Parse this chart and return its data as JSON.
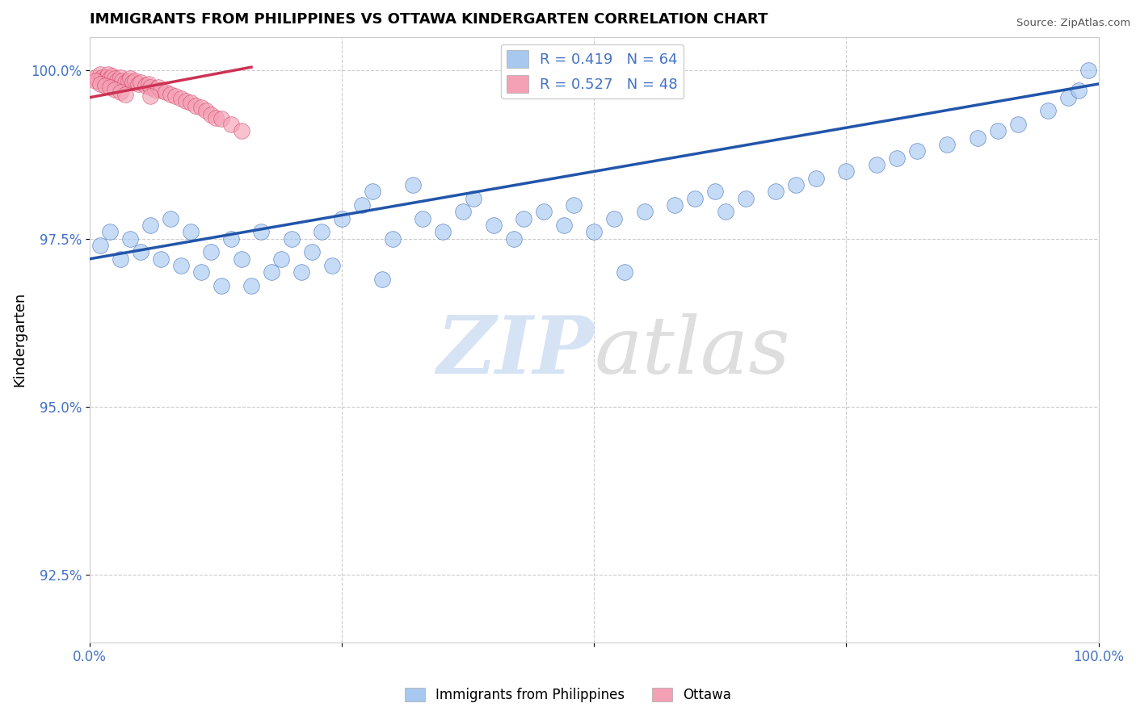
{
  "title": "IMMIGRANTS FROM PHILIPPINES VS OTTAWA KINDERGARTEN CORRELATION CHART",
  "source": "Source: ZipAtlas.com",
  "ylabel": "Kindergarten",
  "xlim": [
    0.0,
    1.0
  ],
  "ylim": [
    0.915,
    1.005
  ],
  "x_ticks": [
    0.0,
    0.25,
    0.5,
    0.75,
    1.0
  ],
  "x_tick_labels": [
    "0.0%",
    "",
    "",
    "",
    "100.0%"
  ],
  "y_ticks": [
    0.925,
    0.95,
    0.975,
    1.0
  ],
  "y_tick_labels": [
    "92.5%",
    "95.0%",
    "97.5%",
    "100.0%"
  ],
  "blue_R": 0.419,
  "blue_N": 64,
  "pink_R": 0.527,
  "pink_N": 48,
  "blue_color": "#a8c8f0",
  "pink_color": "#f4a0b5",
  "blue_line_color": "#2255aa",
  "pink_line_color": "#cc3355",
  "legend_blue_label": "R = 0.419   N = 64",
  "legend_pink_label": "R = 0.527   N = 48",
  "bottom_legend_blue": "Immigrants from Philippines",
  "bottom_legend_pink": "Ottawa",
  "blue_scatter_x": [
    0.01,
    0.02,
    0.03,
    0.04,
    0.05,
    0.06,
    0.07,
    0.08,
    0.09,
    0.1,
    0.11,
    0.12,
    0.13,
    0.14,
    0.15,
    0.16,
    0.17,
    0.18,
    0.19,
    0.2,
    0.21,
    0.22,
    0.23,
    0.25,
    0.27,
    0.28,
    0.3,
    0.32,
    0.33,
    0.35,
    0.37,
    0.38,
    0.4,
    0.42,
    0.43,
    0.45,
    0.47,
    0.48,
    0.5,
    0.52,
    0.55,
    0.58,
    0.6,
    0.62,
    0.63,
    0.65,
    0.68,
    0.7,
    0.72,
    0.75,
    0.78,
    0.8,
    0.82,
    0.85,
    0.88,
    0.9,
    0.92,
    0.95,
    0.97,
    0.98,
    0.24,
    0.29,
    0.53,
    0.99
  ],
  "blue_scatter_y": [
    0.974,
    0.976,
    0.972,
    0.975,
    0.973,
    0.977,
    0.972,
    0.978,
    0.971,
    0.976,
    0.97,
    0.973,
    0.968,
    0.975,
    0.972,
    0.968,
    0.976,
    0.97,
    0.972,
    0.975,
    0.97,
    0.973,
    0.976,
    0.978,
    0.98,
    0.982,
    0.975,
    0.983,
    0.978,
    0.976,
    0.979,
    0.981,
    0.977,
    0.975,
    0.978,
    0.979,
    0.977,
    0.98,
    0.976,
    0.978,
    0.979,
    0.98,
    0.981,
    0.982,
    0.979,
    0.981,
    0.982,
    0.983,
    0.984,
    0.985,
    0.986,
    0.987,
    0.988,
    0.989,
    0.99,
    0.991,
    0.992,
    0.994,
    0.996,
    0.997,
    0.971,
    0.969,
    0.97,
    1.0
  ],
  "pink_scatter_x": [
    0.005,
    0.008,
    0.01,
    0.012,
    0.014,
    0.016,
    0.018,
    0.02,
    0.022,
    0.025,
    0.027,
    0.03,
    0.032,
    0.035,
    0.038,
    0.04,
    0.042,
    0.045,
    0.048,
    0.05,
    0.055,
    0.058,
    0.06,
    0.065,
    0.068,
    0.07,
    0.075,
    0.08,
    0.085,
    0.09,
    0.095,
    0.1,
    0.105,
    0.11,
    0.115,
    0.12,
    0.125,
    0.13,
    0.14,
    0.15,
    0.005,
    0.01,
    0.015,
    0.02,
    0.025,
    0.03,
    0.035,
    0.06
  ],
  "pink_scatter_y": [
    0.999,
    0.9985,
    0.9995,
    0.999,
    0.9985,
    0.999,
    0.9995,
    0.9988,
    0.9992,
    0.9988,
    0.9985,
    0.999,
    0.9985,
    0.9982,
    0.9985,
    0.9988,
    0.9982,
    0.9985,
    0.998,
    0.9982,
    0.9978,
    0.998,
    0.9975,
    0.9972,
    0.9975,
    0.997,
    0.9968,
    0.9965,
    0.9962,
    0.9958,
    0.9955,
    0.9952,
    0.9948,
    0.9945,
    0.994,
    0.9935,
    0.993,
    0.9928,
    0.992,
    0.991,
    0.9985,
    0.998,
    0.9978,
    0.9975,
    0.9972,
    0.9968,
    0.9965,
    0.9962
  ],
  "blue_line_x": [
    0.0,
    1.0
  ],
  "blue_line_y": [
    0.972,
    0.998
  ],
  "pink_line_x": [
    0.0,
    0.16
  ],
  "pink_line_y": [
    0.996,
    1.0005
  ]
}
